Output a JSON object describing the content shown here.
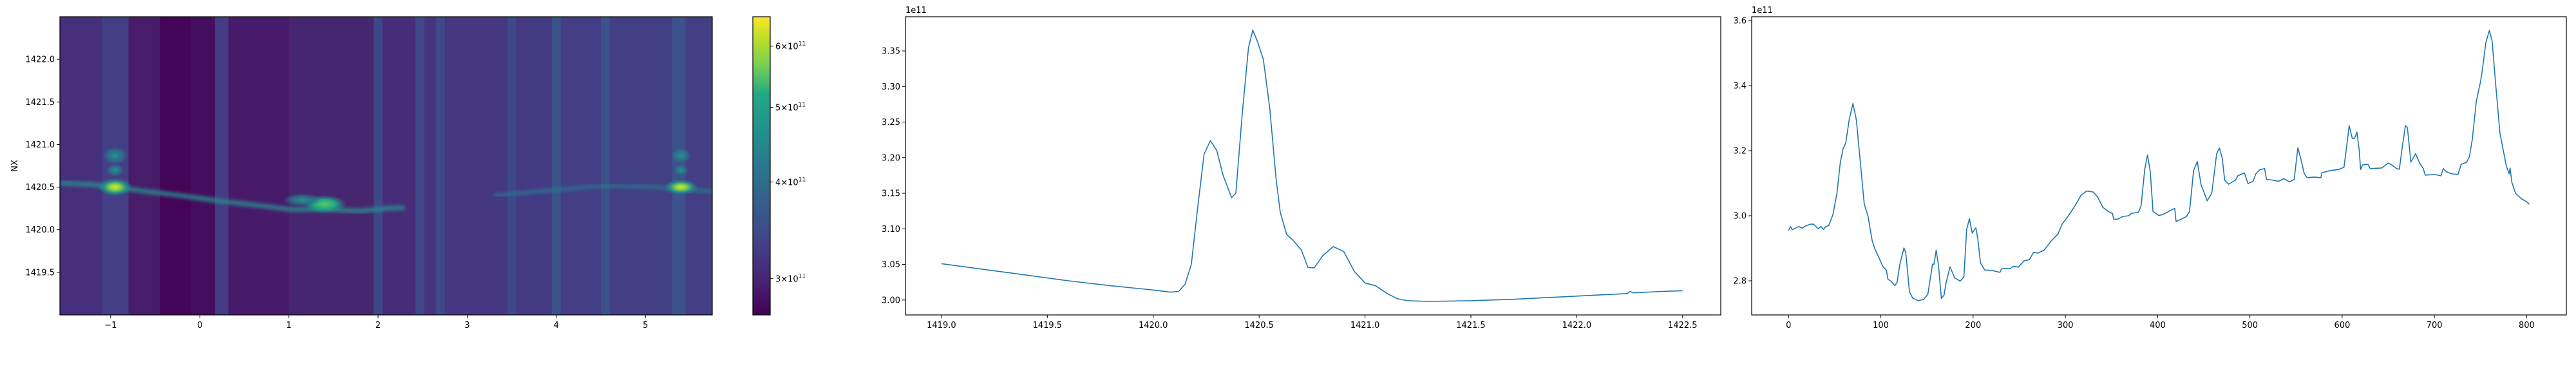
{
  "chart_data": [
    {
      "type": "heatmap",
      "ylabel": "NX",
      "xlabel": "",
      "xlim": [
        -1.57,
        5.75
      ],
      "ylim": [
        1419.0,
        1422.5
      ],
      "xticks": [
        -1,
        0,
        1,
        2,
        3,
        4,
        5
      ],
      "xtick_labels": [
        "−1",
        "0",
        "1",
        "2",
        "3",
        "4",
        "5"
      ],
      "yticks": [
        1419.5,
        1420.0,
        1420.5,
        1421.0,
        1421.5,
        1422.0
      ],
      "ytick_labels": [
        "1419.5",
        "1420.0",
        "1420.5",
        "1421.0",
        "1421.5",
        "1422.0"
      ],
      "colormap": "viridis",
      "colorbar": {
        "scale": "log",
        "range": [
          269000000000.0,
          655000000000.0
        ],
        "ticks": [
          300000000000.0,
          400000000000.0,
          500000000000.0,
          600000000000.0
        ],
        "tick_labels": [
          {
            "mantissa": "3",
            "base": "10",
            "exp": "11"
          },
          {
            "mantissa": "4",
            "base": "10",
            "exp": "11"
          },
          {
            "mantissa": "5",
            "base": "10",
            "exp": "11"
          },
          {
            "mantissa": "6",
            "base": "10",
            "exp": "11"
          }
        ]
      }
    },
    {
      "type": "line",
      "xlabel": "",
      "ylabel": "",
      "offset_label": "1e11",
      "xlim": [
        1418.83,
        1422.68
      ],
      "ylim": [
        2.979,
        3.398
      ],
      "xticks": [
        1419.0,
        1419.5,
        1420.0,
        1420.5,
        1421.0,
        1421.5,
        1422.0,
        1422.5
      ],
      "xtick_labels": [
        "1419.0",
        "1419.5",
        "1420.0",
        "1420.5",
        "1421.0",
        "1421.5",
        "1422.0",
        "1422.5"
      ],
      "yticks": [
        3.0,
        3.05,
        3.1,
        3.15,
        3.2,
        3.25,
        3.3,
        3.35
      ],
      "ytick_labels": [
        "3.00",
        "3.05",
        "3.10",
        "3.15",
        "3.20",
        "3.25",
        "3.30",
        "3.35"
      ],
      "color": "#1f77b4",
      "x": [
        1419.0,
        1419.2,
        1419.4,
        1419.6,
        1419.8,
        1420.0,
        1420.08,
        1420.12,
        1420.15,
        1420.18,
        1420.21,
        1420.24,
        1420.27,
        1420.3,
        1420.33,
        1420.37,
        1420.39,
        1420.42,
        1420.45,
        1420.47,
        1420.49,
        1420.52,
        1420.55,
        1420.58,
        1420.6,
        1420.63,
        1420.66,
        1420.7,
        1420.73,
        1420.76,
        1420.8,
        1420.85,
        1420.9,
        1420.95,
        1421.0,
        1421.05,
        1421.1,
        1421.15,
        1421.2,
        1421.3,
        1421.5,
        1421.7,
        1421.9,
        1422.1,
        1422.24,
        1422.25,
        1422.27,
        1422.4,
        1422.5
      ],
      "y": [
        3.051,
        3.043,
        3.035,
        3.027,
        3.02,
        3.014,
        3.011,
        3.012,
        3.022,
        3.05,
        3.13,
        3.205,
        3.224,
        3.21,
        3.175,
        3.144,
        3.15,
        3.26,
        3.355,
        3.379,
        3.365,
        3.338,
        3.27,
        3.17,
        3.123,
        3.092,
        3.084,
        3.07,
        3.046,
        3.045,
        3.062,
        3.075,
        3.068,
        3.04,
        3.024,
        3.02,
        3.01,
        3.002,
        2.999,
        2.998,
        2.999,
        3.001,
        3.004,
        3.007,
        3.009,
        3.012,
        3.01,
        3.012,
        3.013
      ]
    },
    {
      "type": "line",
      "xlabel": "",
      "ylabel": "",
      "offset_label": "1e11",
      "xlim": [
        -40,
        843
      ],
      "ylim": [
        2.695,
        3.612
      ],
      "xticks": [
        0,
        100,
        200,
        300,
        400,
        500,
        600,
        700,
        800
      ],
      "xtick_labels": [
        "0",
        "100",
        "200",
        "300",
        "400",
        "500",
        "600",
        "700",
        "800"
      ],
      "yticks": [
        2.8,
        3.0,
        3.2,
        3.4,
        3.6
      ],
      "ytick_labels": [
        "2.8",
        "3.0",
        "3.2",
        "3.4",
        "3.6"
      ],
      "color": "#1f77b4",
      "x": [
        0,
        2,
        4,
        11,
        15,
        18.5,
        23.5,
        27,
        32,
        35,
        38,
        40,
        43.5,
        48,
        52.4,
        56,
        59,
        62,
        65.6,
        69.7,
        73.5,
        77,
        82,
        86,
        90.6,
        93.5,
        98,
        102,
        106,
        107.6,
        111,
        115,
        117.6,
        120.6,
        125,
        127,
        131,
        134.7,
        140.6,
        146.5,
        151,
        156,
        157.6,
        160,
        162.6,
        165.6,
        168.5,
        170.6,
        175,
        180,
        186,
        190,
        193,
        196,
        199,
        203,
        205,
        208,
        212.6,
        220,
        229,
        231,
        240.6,
        243.5,
        249,
        255,
        261,
        265.6,
        270,
        277,
        285,
        292,
        296.5,
        304,
        311,
        317,
        323,
        330,
        334.7,
        340.6,
        346.5,
        351,
        352.4,
        357,
        362.6,
        368.5,
        372,
        379,
        382,
        386,
        389,
        392,
        395,
        401,
        405,
        418.5,
        420,
        431,
        434.6,
        439,
        443,
        447,
        453.7,
        458.7,
        464,
        467,
        470,
        472.7,
        477,
        484.5,
        487,
        494,
        498,
        503.5,
        506.5,
        511,
        516,
        518,
        524,
        531,
        537,
        543,
        548,
        552,
        555,
        559,
        562,
        569.5,
        577,
        578,
        587,
        596,
        602,
        605,
        607.6,
        611,
        613.5,
        616,
        618.5,
        620,
        622,
        628,
        630.5,
        643,
        650,
        654.5,
        659,
        662,
        665,
        668.6,
        670.7,
        674.5,
        679.5,
        684,
        688,
        690,
        700,
        707,
        709.7,
        713,
        719,
        725.5,
        729,
        735,
        738,
        741,
        745.5,
        750,
        752,
        755.7,
        759.5,
        762.5,
        766.6,
        771,
        778,
        781,
        782,
        784,
        788,
        794,
        800,
        803
      ],
      "y": [
        2.955,
        2.967,
        2.957,
        2.967,
        2.962,
        2.969,
        2.974,
        2.974,
        2.96,
        2.967,
        2.958,
        2.966,
        2.97,
        3.003,
        3.069,
        3.162,
        3.205,
        3.224,
        3.294,
        3.345,
        3.294,
        3.188,
        3.036,
        3.0,
        2.924,
        2.898,
        2.871,
        2.845,
        2.832,
        2.805,
        2.799,
        2.785,
        2.795,
        2.851,
        2.901,
        2.888,
        2.766,
        2.746,
        2.739,
        2.743,
        2.759,
        2.851,
        2.851,
        2.894,
        2.845,
        2.746,
        2.756,
        2.792,
        2.843,
        2.809,
        2.799,
        2.812,
        2.957,
        2.991,
        2.947,
        2.963,
        2.931,
        2.855,
        2.833,
        2.832,
        2.826,
        2.837,
        2.838,
        2.845,
        2.842,
        2.861,
        2.865,
        2.888,
        2.885,
        2.894,
        2.924,
        2.944,
        2.974,
        3.003,
        3.033,
        3.063,
        3.076,
        3.073,
        3.059,
        3.026,
        3.013,
        3.007,
        2.989,
        2.99,
        2.998,
        3.0,
        3.008,
        3.01,
        3.03,
        3.142,
        3.187,
        3.136,
        3.013,
        3.001,
        3.003,
        3.023,
        2.982,
        2.997,
        3.013,
        3.139,
        3.167,
        3.096,
        3.046,
        3.069,
        3.191,
        3.208,
        3.178,
        3.109,
        3.097,
        3.11,
        3.123,
        3.132,
        3.099,
        3.106,
        3.129,
        3.142,
        3.145,
        3.112,
        3.11,
        3.106,
        3.114,
        3.104,
        3.112,
        3.209,
        3.178,
        3.129,
        3.117,
        3.119,
        3.117,
        3.132,
        3.139,
        3.142,
        3.149,
        3.215,
        3.277,
        3.238,
        3.238,
        3.257,
        3.201,
        3.142,
        3.156,
        3.158,
        3.145,
        3.147,
        3.162,
        3.155,
        3.145,
        3.143,
        3.208,
        3.277,
        3.271,
        3.165,
        3.191,
        3.162,
        3.145,
        3.125,
        3.127,
        3.123,
        3.145,
        3.135,
        3.129,
        3.127,
        3.158,
        3.165,
        3.182,
        3.234,
        3.353,
        3.413,
        3.449,
        3.531,
        3.57,
        3.538,
        3.399,
        3.254,
        3.152,
        3.129,
        3.147,
        3.102,
        3.069,
        3.053,
        3.043,
        3.035
      ]
    }
  ]
}
